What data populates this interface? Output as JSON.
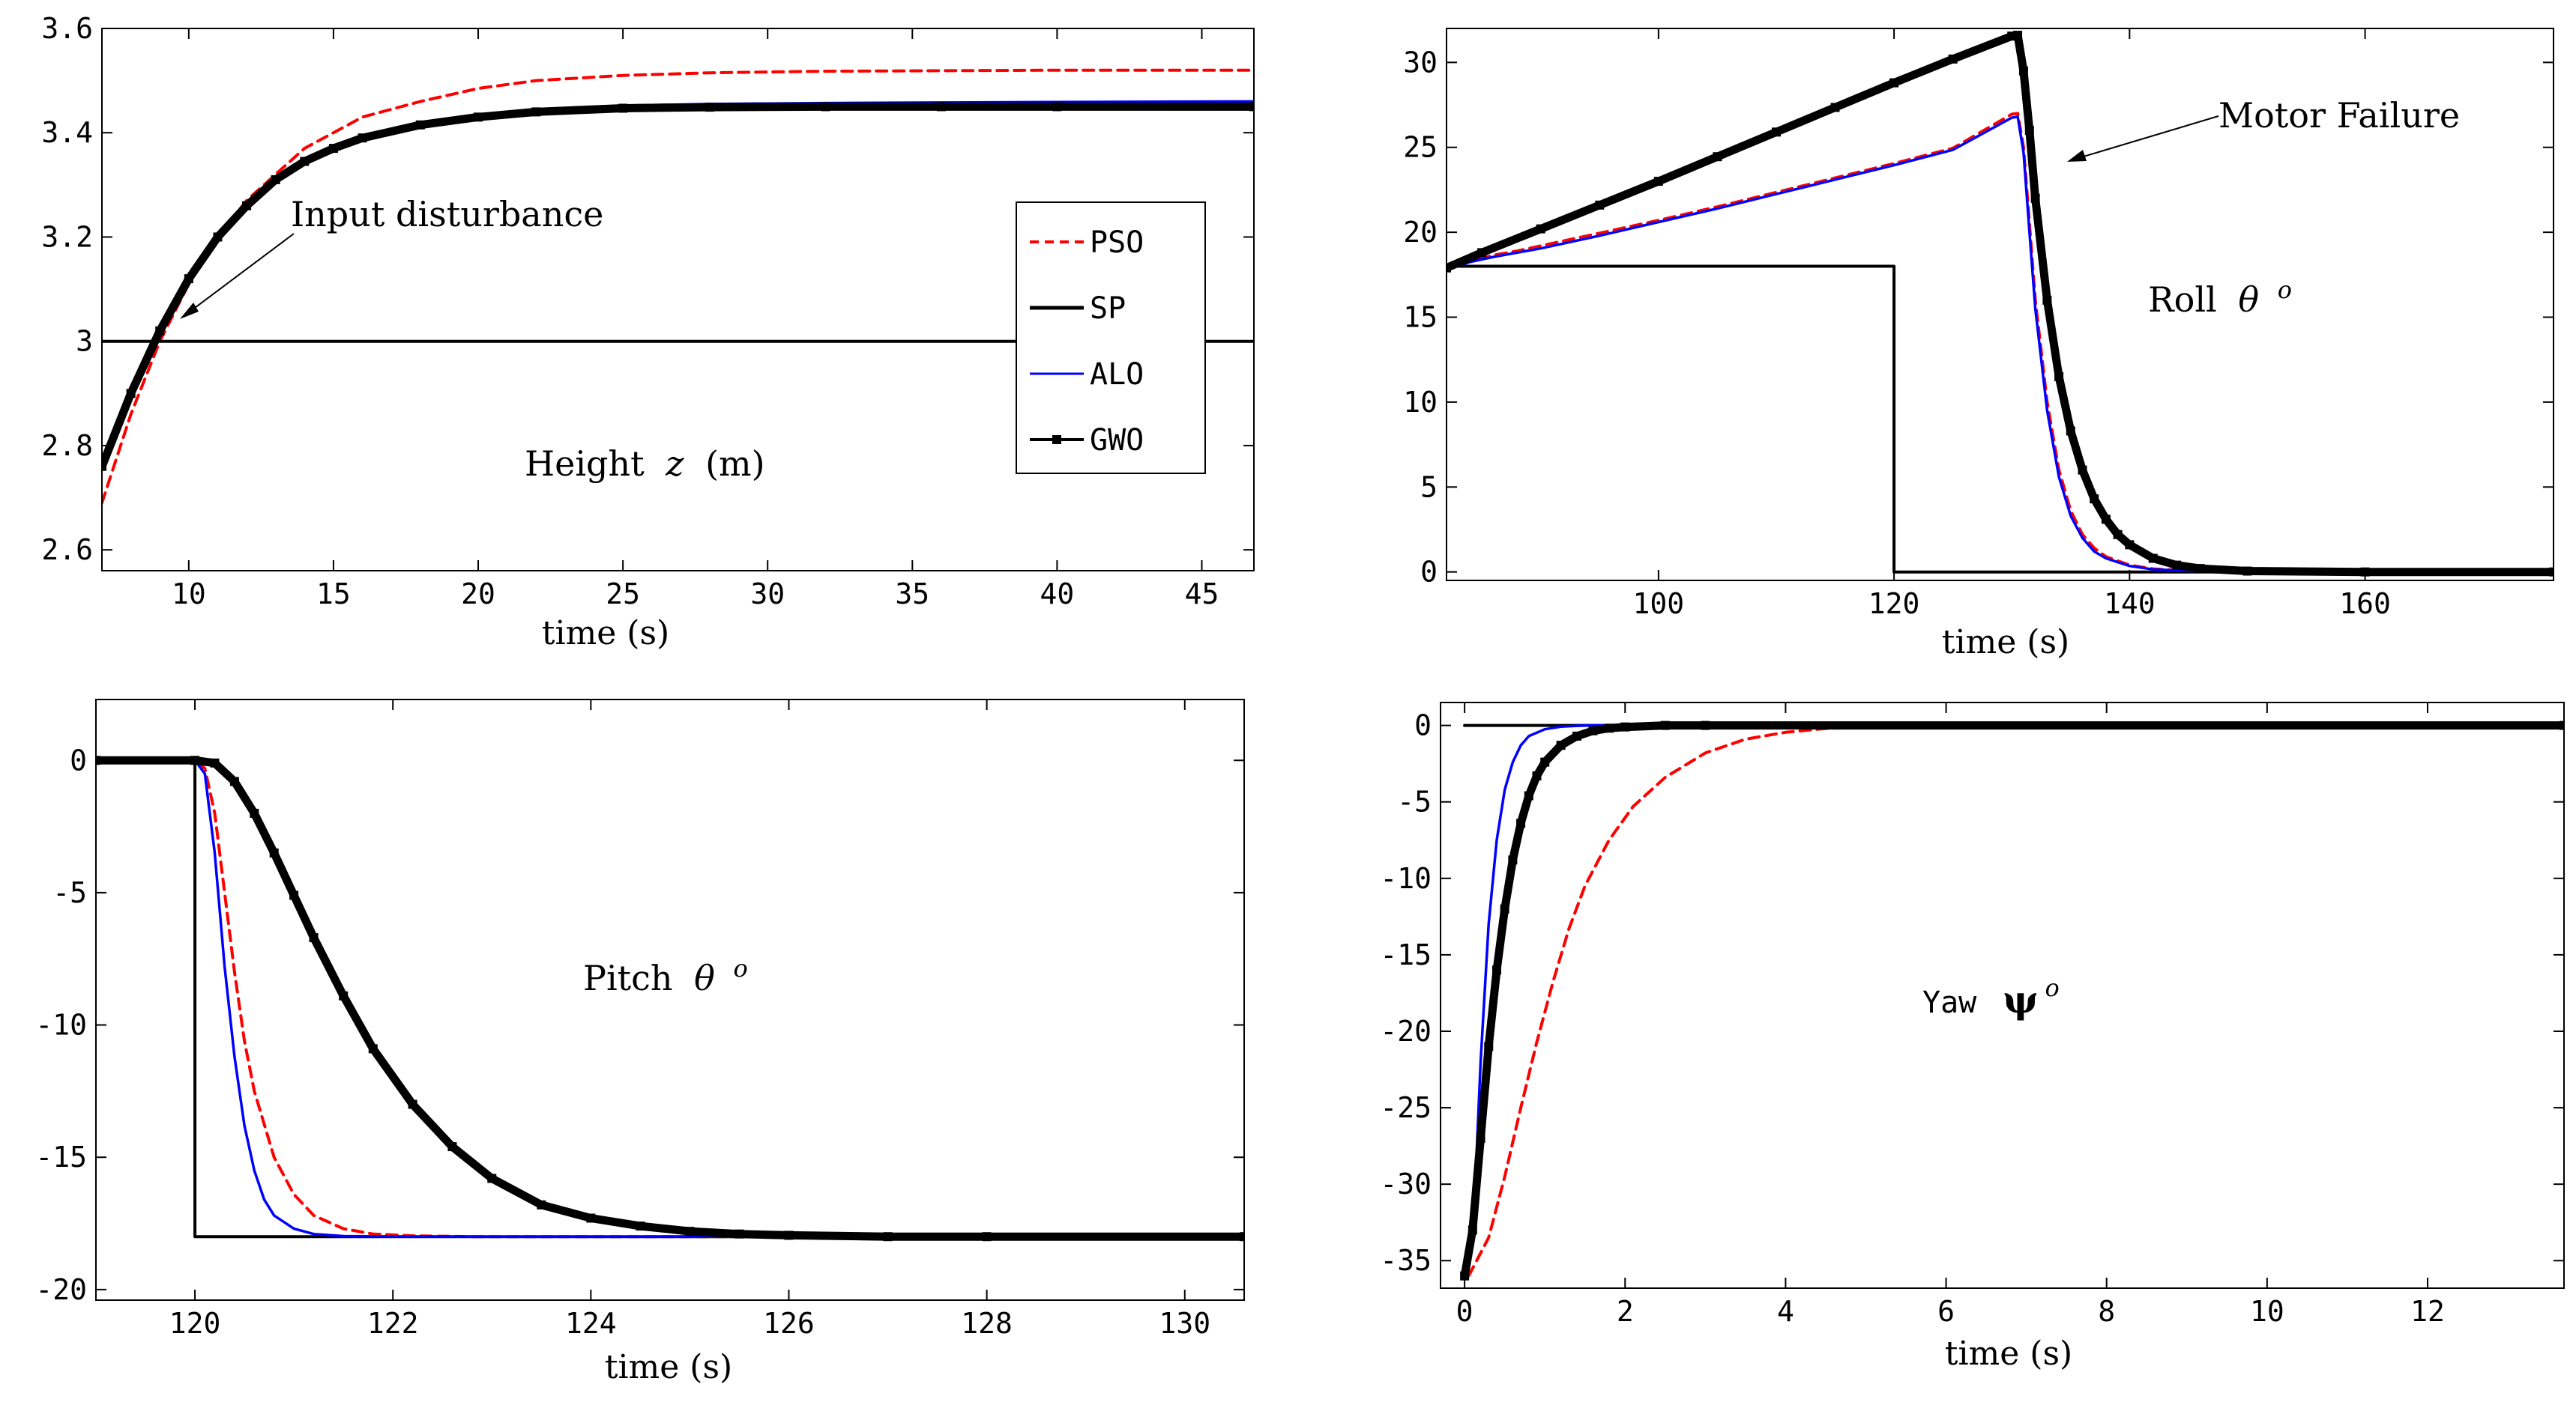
{
  "chart_data": [
    {
      "type": "line",
      "name": "height",
      "title": "Height z (m)",
      "title_text": "Height",
      "title_var": "z",
      "title_unit": "(m)",
      "xlabel": "time (s)",
      "xlim": [
        7,
        46.8
      ],
      "ylim": [
        2.56,
        3.6
      ],
      "xticks": [
        10,
        15,
        20,
        25,
        30,
        35,
        40,
        45
      ],
      "yticks": [
        2.6,
        2.8,
        3,
        3.2,
        3.4,
        3.6
      ],
      "legend": {
        "position": "right",
        "entries": [
          {
            "label": "PSO",
            "color": "#ff0000",
            "style": "dashed"
          },
          {
            "label": "SP",
            "color": "#000000",
            "style": "solid"
          },
          {
            "label": "ALO",
            "color": "#0000ff",
            "style": "solid"
          },
          {
            "label": "GWO",
            "color": "#000000",
            "style": "marker"
          }
        ]
      },
      "annotation": {
        "text": "Input disturbance",
        "points_to": [
          8.5,
          3.04
        ]
      },
      "series": [
        {
          "name": "PSO",
          "x": [
            7,
            8,
            9,
            10,
            11,
            12,
            13,
            14,
            15,
            16,
            18,
            20,
            22,
            25,
            28,
            32,
            36,
            40,
            46.8
          ],
          "values": [
            2.69,
            2.86,
            3.0,
            3.11,
            3.2,
            3.27,
            3.32,
            3.37,
            3.4,
            3.43,
            3.46,
            3.485,
            3.5,
            3.51,
            3.515,
            3.518,
            3.519,
            3.52,
            3.52
          ]
        },
        {
          "name": "SP",
          "x": [
            7,
            46.8
          ],
          "values": [
            3.0,
            3.0
          ]
        },
        {
          "name": "ALO",
          "x": [
            7,
            8,
            9,
            10,
            11,
            12,
            13,
            14,
            15,
            16,
            18,
            20,
            22,
            25,
            28,
            32,
            36,
            40,
            46.8
          ],
          "values": [
            2.76,
            2.9,
            3.02,
            3.12,
            3.2,
            3.26,
            3.31,
            3.345,
            3.37,
            3.39,
            3.42,
            3.435,
            3.445,
            3.452,
            3.455,
            3.457,
            3.458,
            3.459,
            3.46
          ]
        },
        {
          "name": "GWO",
          "x": [
            7,
            8,
            9,
            10,
            11,
            12,
            13,
            14,
            15,
            16,
            18,
            20,
            22,
            25,
            28,
            32,
            36,
            40,
            46.8
          ],
          "values": [
            2.76,
            2.9,
            3.02,
            3.12,
            3.2,
            3.26,
            3.31,
            3.345,
            3.37,
            3.39,
            3.415,
            3.43,
            3.44,
            3.447,
            3.449,
            3.45,
            3.45,
            3.45,
            3.45
          ]
        }
      ]
    },
    {
      "type": "line",
      "name": "roll",
      "title": "Roll θ o",
      "title_text": "Roll",
      "title_var": "θ",
      "title_sup": "o",
      "xlabel": "time (s)",
      "xlim": [
        82,
        176
      ],
      "ylim": [
        -0.5,
        32
      ],
      "xticks": [
        100,
        120,
        140,
        160
      ],
      "yticks": [
        0,
        5,
        10,
        15,
        20,
        25,
        30
      ],
      "annotation": {
        "text": "Motor Failure",
        "points_to": [
          132.5,
          24
        ]
      },
      "series": [
        {
          "name": "PSO",
          "x": [
            82,
            84,
            86,
            88,
            90,
            95,
            100,
            105,
            110,
            115,
            120,
            125,
            130,
            130.5,
            131,
            131.5,
            132,
            133,
            134,
            135,
            136,
            137,
            138,
            140,
            142,
            145,
            150,
            160,
            176
          ],
          "values": [
            17.8,
            18.3,
            18.65,
            18.9,
            19.2,
            19.95,
            20.7,
            21.5,
            22.35,
            23.2,
            24.05,
            24.95,
            26.95,
            27.0,
            25.0,
            20.5,
            16.0,
            10.0,
            6.0,
            3.6,
            2.2,
            1.4,
            0.9,
            0.4,
            0.18,
            0.07,
            0.02,
            0.0,
            0.0
          ]
        },
        {
          "name": "SP",
          "x": [
            82,
            120,
            120,
            176
          ],
          "values": [
            18,
            18,
            0,
            0
          ]
        },
        {
          "name": "ALO",
          "x": [
            82,
            84,
            86,
            88,
            90,
            95,
            100,
            105,
            110,
            115,
            120,
            125,
            130,
            130.5,
            131,
            131.5,
            132,
            133,
            134,
            135,
            136,
            137,
            138,
            140,
            142,
            145,
            150,
            160,
            176
          ],
          "values": [
            17.8,
            18.25,
            18.55,
            18.8,
            19.05,
            19.8,
            20.6,
            21.4,
            22.25,
            23.1,
            23.95,
            24.85,
            26.75,
            26.8,
            24.7,
            20.0,
            15.5,
            9.5,
            5.6,
            3.3,
            2.0,
            1.2,
            0.8,
            0.35,
            0.15,
            0.06,
            0.02,
            0.0,
            0.0
          ]
        },
        {
          "name": "GWO",
          "x": [
            82,
            85,
            90,
            95,
            100,
            105,
            110,
            115,
            120,
            125,
            130,
            130.5,
            131,
            131.5,
            132,
            133,
            134,
            135,
            136,
            137,
            138,
            139,
            140,
            142,
            144,
            146,
            150,
            160,
            176
          ],
          "values": [
            17.9,
            18.8,
            20.2,
            21.6,
            23.0,
            24.45,
            25.9,
            27.35,
            28.8,
            30.2,
            31.55,
            31.6,
            29.5,
            26.0,
            22.0,
            16.0,
            11.5,
            8.3,
            6.0,
            4.3,
            3.1,
            2.2,
            1.6,
            0.8,
            0.4,
            0.2,
            0.05,
            0.0,
            0.0
          ]
        }
      ]
    },
    {
      "type": "line",
      "name": "pitch",
      "title": "Pitch θ o",
      "title_text": "Pitch",
      "title_var": "θ",
      "title_sup": "o",
      "xlabel": "time (s)",
      "xlim": [
        119,
        130.6
      ],
      "ylim": [
        -20.4,
        2.3
      ],
      "xticks": [
        120,
        122,
        124,
        126,
        128,
        130
      ],
      "yticks": [
        0,
        -5,
        -10,
        -15,
        -20
      ],
      "series": [
        {
          "name": "PSO",
          "x": [
            119,
            120,
            120.1,
            120.2,
            120.3,
            120.4,
            120.5,
            120.6,
            120.8,
            121.0,
            121.2,
            121.5,
            121.8,
            122.2,
            122.8,
            123.5,
            125,
            130.6
          ],
          "values": [
            0,
            0,
            -0.3,
            -2.0,
            -5.0,
            -8.0,
            -10.6,
            -12.5,
            -15.0,
            -16.4,
            -17.2,
            -17.7,
            -17.9,
            -17.97,
            -18.0,
            -18.0,
            -18.0,
            -18.0
          ]
        },
        {
          "name": "SP",
          "x": [
            119,
            120,
            120,
            130.6
          ],
          "values": [
            0,
            0,
            -18,
            -18
          ]
        },
        {
          "name": "ALO",
          "x": [
            119,
            120,
            120.1,
            120.2,
            120.3,
            120.4,
            120.5,
            120.6,
            120.7,
            120.8,
            121.0,
            121.2,
            121.5,
            122,
            123,
            130.6
          ],
          "values": [
            0,
            0,
            -0.5,
            -3.5,
            -7.8,
            -11.2,
            -13.8,
            -15.5,
            -16.6,
            -17.2,
            -17.7,
            -17.9,
            -17.98,
            -18.0,
            -18.0,
            -18.0
          ]
        },
        {
          "name": "GWO",
          "x": [
            119,
            120,
            120.2,
            120.4,
            120.6,
            120.8,
            121.0,
            121.2,
            121.5,
            121.8,
            122.2,
            122.6,
            123.0,
            123.5,
            124.0,
            124.5,
            125.0,
            125.5,
            126.0,
            127.0,
            128.0,
            130.6
          ],
          "values": [
            0,
            0,
            -0.1,
            -0.8,
            -2.0,
            -3.5,
            -5.1,
            -6.7,
            -8.9,
            -10.9,
            -13.0,
            -14.6,
            -15.8,
            -16.8,
            -17.3,
            -17.6,
            -17.8,
            -17.9,
            -17.95,
            -18.0,
            -18.0,
            -18.0
          ]
        }
      ]
    },
    {
      "type": "line",
      "name": "yaw",
      "title": "Yaw ψo",
      "title_text": "Yaw",
      "title_var": "ψ",
      "title_sup": "o",
      "xlabel": "time (s)",
      "xlim": [
        -0.3,
        13.7
      ],
      "ylim": [
        -36.8,
        1.5
      ],
      "xticks": [
        0,
        2,
        4,
        6,
        8,
        10,
        12
      ],
      "yticks": [
        0,
        -5,
        -10,
        -15,
        -20,
        -25,
        -30,
        -35
      ],
      "series": [
        {
          "name": "PSO",
          "x": [
            0.05,
            0.3,
            0.5,
            0.7,
            0.9,
            1.1,
            1.3,
            1.5,
            1.8,
            2.1,
            2.5,
            3.0,
            3.5,
            4.0,
            4.5,
            5.0,
            13.7
          ],
          "values": [
            -36.0,
            -33.5,
            -29.5,
            -25.0,
            -20.7,
            -16.8,
            -13.3,
            -10.5,
            -7.5,
            -5.3,
            -3.4,
            -1.8,
            -0.9,
            -0.45,
            -0.2,
            -0.1,
            0.0
          ]
        },
        {
          "name": "SP",
          "x": [
            0,
            13.7
          ],
          "values": [
            0,
            0
          ]
        },
        {
          "name": "ALO",
          "x": [
            0.1,
            0.2,
            0.3,
            0.4,
            0.5,
            0.6,
            0.7,
            0.8,
            1.0,
            1.2,
            1.5,
            13.7
          ],
          "values": [
            -34.0,
            -22.0,
            -13.0,
            -7.5,
            -4.2,
            -2.4,
            -1.3,
            -0.7,
            -0.25,
            -0.08,
            0.0,
            0.0
          ]
        },
        {
          "name": "GWO",
          "x": [
            0.0,
            0.1,
            0.2,
            0.3,
            0.4,
            0.5,
            0.6,
            0.7,
            0.8,
            0.9,
            1.0,
            1.2,
            1.4,
            1.6,
            1.8,
            2.0,
            2.5,
            3.0,
            13.7
          ],
          "values": [
            -36.0,
            -33.0,
            -27.0,
            -21.0,
            -16.0,
            -12.0,
            -8.8,
            -6.4,
            -4.6,
            -3.3,
            -2.4,
            -1.3,
            -0.7,
            -0.35,
            -0.18,
            -0.1,
            0.0,
            0.0,
            0.0
          ]
        }
      ]
    }
  ]
}
